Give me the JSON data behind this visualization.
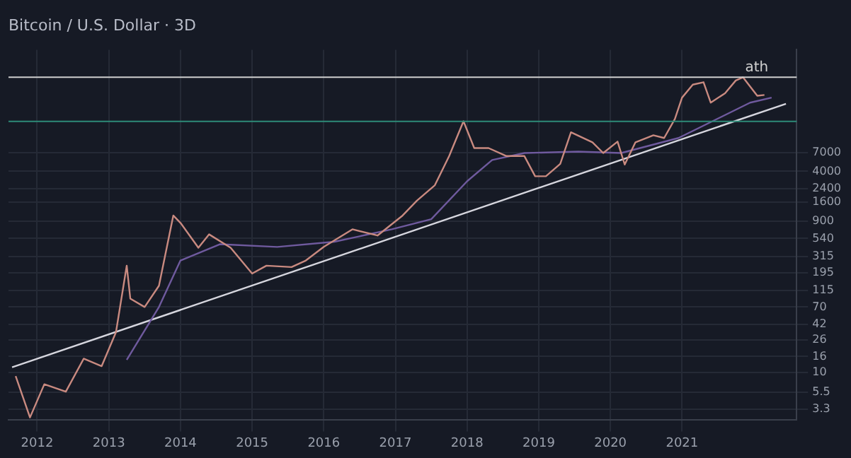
{
  "chart_data": {
    "type": "line",
    "title": "Bitcoin / U.S. Dollar · 3D",
    "log": "y",
    "grid": true,
    "legend": false,
    "marker": "none",
    "line_style": "solid",
    "xlim": [
      2011.6,
      2022.6
    ],
    "xticks": [
      2012,
      2013,
      2014,
      2015,
      2016,
      2017,
      2018,
      2019,
      2020,
      2021
    ],
    "ylim": [
      2.4,
      150000
    ],
    "yticks": [
      3.3,
      5.5,
      10,
      16,
      26,
      42,
      70,
      115,
      195,
      315,
      540,
      900,
      1600,
      2400,
      4000,
      7000
    ],
    "series": [
      {
        "color": "#c98a80",
        "x": [
          2011.7,
          2011.9,
          2012.1,
          2012.4,
          2012.65,
          2012.9,
          2013.1,
          2013.25,
          2013.3,
          2013.5,
          2013.7,
          2013.9,
          2014.0,
          2014.25,
          2014.4,
          2014.7,
          2015.0,
          2015.2,
          2015.55,
          2015.75,
          2016.0,
          2016.4,
          2016.75,
          2017.1,
          2017.3,
          2017.55,
          2017.75,
          2017.95,
          2018.1,
          2018.3,
          2018.55,
          2018.8,
          2018.95,
          2019.1,
          2019.3,
          2019.45,
          2019.75,
          2019.9,
          2020.1,
          2020.2,
          2020.35,
          2020.6,
          2020.75,
          2020.9,
          2021.0,
          2021.15,
          2021.3,
          2021.4,
          2021.6,
          2021.75,
          2021.85,
          2022.05,
          2022.15
        ],
        "values": [
          8.9,
          2.6,
          7,
          5.6,
          15,
          12,
          33,
          240,
          90,
          70,
          132,
          1070,
          860,
          410,
          610,
          410,
          190,
          240,
          230,
          280,
          420,
          710,
          590,
          1070,
          1670,
          2640,
          6300,
          17800,
          8000,
          8000,
          6300,
          6300,
          3450,
          3450,
          5000,
          12800,
          9500,
          6900,
          9700,
          4900,
          9500,
          11700,
          10800,
          19000,
          36000,
          53000,
          57000,
          31000,
          41000,
          60000,
          66000,
          38000,
          39000
        ]
      },
      {
        "color": "#6f5a9e",
        "x": [
          2013.25,
          2013.7,
          2014.0,
          2014.55,
          2015.35,
          2016.15,
          2016.95,
          2017.5,
          2018.0,
          2018.35,
          2018.8,
          2019.55,
          2020.15,
          2020.95,
          2021.95,
          2022.25
        ],
        "values": [
          14.5,
          70,
          280,
          455,
          420,
          490,
          710,
          960,
          2970,
          5600,
          6900,
          7200,
          6900,
          10800,
          31000,
          36000
        ]
      },
      {
        "color": "#d6d6de",
        "x": [
          2011.65,
          2022.45
        ],
        "values": [
          11.6,
          30000
        ]
      }
    ],
    "ref_lines": [
      {
        "axis": "y",
        "value": 66000,
        "label": "ath",
        "color": "#cfcfcf"
      },
      {
        "axis": "y",
        "value": 17700,
        "color": "#2e8b78"
      }
    ]
  }
}
